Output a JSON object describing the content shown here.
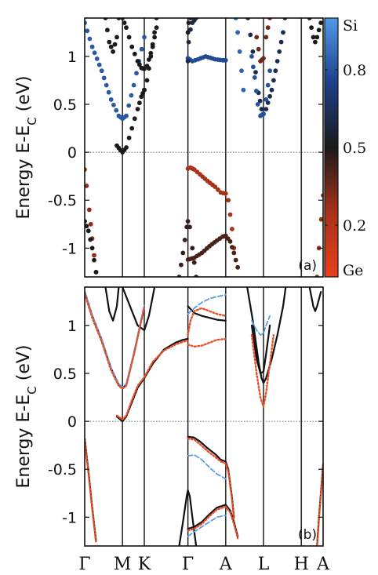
{
  "chart_data": [
    {
      "panel": "a",
      "type": "scatter",
      "tag": "(a)",
      "ylabel": "Energy E-E",
      "ylabel_sub": "C",
      "ylabel_unit": " (eV)",
      "ylim": [
        -1.3,
        1.4
      ],
      "yticks": [
        "1",
        "0.5",
        "0",
        "-0.5",
        "-1"
      ],
      "ytick_values": [
        1,
        0.5,
        0,
        -0.5,
        -1
      ],
      "kpoints": [
        "Γ",
        "M",
        "K",
        "Γ",
        "A",
        "L",
        "H",
        "A"
      ],
      "kpoint_positions": [
        0,
        1,
        1.577,
        2.732,
        3.732,
        4.732,
        5.732,
        6.309
      ],
      "fermi_line": 0,
      "colorbar": {
        "top_label": "Si",
        "bottom_label": "Ge",
        "ticks": [
          "0.8",
          "0.5",
          "0.2"
        ],
        "tick_values": [
          0.8,
          0.5,
          0.2
        ],
        "stops": [
          "#e8401e",
          "#a83218",
          "#1a1a1a",
          "#1d3f8a",
          "#4f9be8"
        ]
      },
      "bands": [
        {
          "x": [
            0.0,
            0.2,
            0.45,
            0.7,
            0.9,
            1.0,
            1.1,
            1.3,
            1.577
          ],
          "y": [
            1.35,
            1.1,
            0.85,
            0.55,
            0.38,
            0.35,
            0.38,
            0.7,
            1.2
          ],
          "si": 0.82
        },
        {
          "x": [
            0.85,
            0.95,
            1.0,
            1.1,
            1.25,
            1.4,
            1.5,
            1.577
          ],
          "y": [
            0.07,
            0.02,
            0.0,
            0.05,
            0.25,
            0.45,
            0.58,
            0.65
          ],
          "si": 0.5
        },
        {
          "x": [
            1.0,
            1.1,
            1.25,
            1.4,
            1.5,
            1.577,
            1.65,
            1.8,
            1.9
          ],
          "y": [
            1.4,
            1.3,
            1.1,
            0.95,
            0.88,
            0.87,
            0.9,
            1.1,
            1.3
          ],
          "si": 0.5
        },
        {
          "x": [
            1.577,
            1.65,
            1.75,
            1.85,
            1.9
          ],
          "y": [
            0.65,
            0.75,
            1.0,
            1.25,
            1.4
          ],
          "si": 0.5
        },
        {
          "x": [
            2.732,
            2.85,
            3.0,
            3.2,
            3.45,
            3.65,
            3.732
          ],
          "y": [
            0.98,
            0.95,
            0.97,
            1.0,
            0.97,
            0.96,
            0.96
          ],
          "si": 0.78
        },
        {
          "x": [
            2.732,
            2.75,
            2.8,
            2.85,
            2.95
          ],
          "y": [
            0.95,
            1.15,
            1.28,
            1.35,
            1.4
          ],
          "si": 0.6
        },
        {
          "x": [
            2.732,
            2.8,
            2.9,
            3.05,
            3.25,
            3.45,
            3.6,
            3.732,
            3.8,
            3.9,
            3.95
          ],
          "y": [
            -0.17,
            -0.16,
            -0.18,
            -0.23,
            -0.3,
            -0.36,
            -0.42,
            -0.43,
            -0.5,
            -0.8,
            -1.0
          ],
          "si": 0.25
        },
        {
          "x": [
            2.732,
            2.9,
            3.1,
            3.3,
            3.5,
            3.65,
            3.732,
            3.85,
            3.95,
            4.05
          ],
          "y": [
            -1.12,
            -1.1,
            -1.05,
            -0.98,
            -0.92,
            -0.88,
            -0.87,
            -0.93,
            -1.05,
            -1.2
          ],
          "si": 0.42
        },
        {
          "x": [
            2.5,
            2.6,
            2.7,
            2.732,
            2.78,
            2.85,
            2.95
          ],
          "y": [
            -1.3,
            -1.05,
            -0.78,
            -0.72,
            -0.78,
            -1.0,
            -1.3
          ],
          "si": 0.45
        },
        {
          "x": [
            0.0,
            0.05,
            0.12,
            0.2,
            0.3
          ],
          "y": [
            -0.18,
            -0.35,
            -0.6,
            -0.9,
            -1.25
          ],
          "si": 0.3
        },
        {
          "x": [
            0.0,
            0.1,
            0.2,
            0.3
          ],
          "y": [
            -0.72,
            -0.82,
            -1.0,
            -1.25
          ],
          "si": 0.5
        },
        {
          "x": [
            4.32,
            4.45,
            4.6,
            4.68,
            4.732,
            4.8,
            4.95,
            5.05,
            5.15,
            5.25,
            5.3
          ],
          "y": [
            1.4,
            1.05,
            0.62,
            0.45,
            0.4,
            0.45,
            0.65,
            0.85,
            1.05,
            1.25,
            1.4
          ],
          "si": 0.62
        },
        {
          "x": [
            4.42,
            4.5,
            4.58,
            4.65,
            4.732,
            4.8,
            4.9
          ],
          "y": [
            1.0,
            0.78,
            0.5,
            0.38,
            0.4,
            0.55,
            0.85
          ],
          "si": 0.8
        },
        {
          "x": [
            4.0,
            4.05,
            4.1,
            4.15,
            4.2
          ],
          "y": [
            1.4,
            1.25,
            1.05,
            0.85,
            0.65
          ],
          "si": 0.85
        },
        {
          "x": [
            4.55,
            4.65,
            4.732,
            4.8,
            4.9
          ],
          "y": [
            1.2,
            0.95,
            0.98,
            1.2,
            1.4
          ],
          "si": 0.35
        },
        {
          "x": [
            5.95,
            6.05,
            6.1,
            6.15,
            6.25
          ],
          "y": [
            1.4,
            1.2,
            1.15,
            1.2,
            1.35
          ],
          "si": 0.5
        },
        {
          "x": [
            6.15,
            6.2,
            6.26,
            6.309
          ],
          "y": [
            -1.3,
            -1.0,
            -0.7,
            -0.45
          ],
          "si": 0.28
        },
        {
          "x": [
            0.55,
            0.65,
            0.75,
            0.85,
            0.9
          ],
          "y": [
            1.4,
            1.15,
            1.05,
            1.2,
            1.4
          ],
          "si": 0.5
        },
        {
          "x": [
            2.732,
            2.75,
            2.8
          ],
          "y": [
            1.25,
            1.35,
            1.4
          ],
          "si": 0.5
        }
      ]
    },
    {
      "panel": "b",
      "type": "line",
      "tag": "(b)",
      "ylabel": "Energy E-E",
      "ylabel_sub": "C",
      "ylabel_unit": " (eV)",
      "ylim": [
        -1.3,
        1.4
      ],
      "yticks": [
        "1",
        "0.5",
        "0",
        "-0.5",
        "-1"
      ],
      "ytick_values": [
        1,
        0.5,
        0,
        -0.5,
        -1
      ],
      "kpoints": [
        "Γ",
        "M",
        "K",
        "Γ",
        "A",
        "L",
        "H",
        "A"
      ],
      "kpoint_positions": [
        0,
        1,
        1.577,
        2.732,
        3.732,
        4.732,
        5.732,
        6.309
      ],
      "fermi_line": 0,
      "series": [
        {
          "style": "solid-black",
          "color": "#111111",
          "bands": [
            {
              "x": [
                0.0,
                0.2,
                0.45,
                0.7,
                0.9,
                1.0,
                1.1,
                1.3,
                1.577
              ],
              "y": [
                1.35,
                1.1,
                0.85,
                0.55,
                0.38,
                0.35,
                0.38,
                0.7,
                1.2
              ]
            },
            {
              "x": [
                0.85,
                1.0,
                1.1,
                1.25,
                1.4,
                1.577,
                1.8,
                2.1,
                2.4,
                2.6,
                2.732
              ],
              "y": [
                0.05,
                0.0,
                0.05,
                0.2,
                0.35,
                0.45,
                0.6,
                0.75,
                0.82,
                0.85,
                0.86
              ]
            },
            {
              "x": [
                1.0,
                1.2,
                1.4,
                1.577,
                1.7,
                1.85
              ],
              "y": [
                1.4,
                1.2,
                1.0,
                0.95,
                1.1,
                1.4
              ]
            },
            {
              "x": [
                2.732,
                2.9,
                3.1,
                3.3,
                3.5,
                3.732
              ],
              "y": [
                1.2,
                1.13,
                1.1,
                1.08,
                1.06,
                1.05
              ]
            },
            {
              "x": [
                2.732,
                2.9,
                3.05,
                3.25,
                3.45,
                3.6,
                3.732,
                3.8,
                3.9,
                3.95
              ],
              "y": [
                -0.16,
                -0.17,
                -0.21,
                -0.28,
                -0.34,
                -0.4,
                -0.42,
                -0.5,
                -0.8,
                -1.0
              ]
            },
            {
              "x": [
                2.732,
                2.9,
                3.1,
                3.3,
                3.5,
                3.732,
                3.85,
                3.95,
                4.05
              ],
              "y": [
                -1.12,
                -1.1,
                -1.05,
                -0.97,
                -0.9,
                -0.87,
                -0.93,
                -1.05,
                -1.2
              ]
            },
            {
              "x": [
                2.5,
                2.6,
                2.7,
                2.732,
                2.78,
                2.85,
                2.95
              ],
              "y": [
                -1.3,
                -1.05,
                -0.78,
                -0.72,
                -0.78,
                -1.0,
                -1.3
              ]
            },
            {
              "x": [
                0.0,
                0.05,
                0.12,
                0.2,
                0.3
              ],
              "y": [
                -0.18,
                -0.35,
                -0.6,
                -0.9,
                -1.25
              ]
            },
            {
              "x": [
                4.3,
                4.45,
                4.6,
                4.68,
                4.732,
                4.8,
                4.95,
                5.1,
                5.25,
                5.32
              ],
              "y": [
                1.4,
                1.05,
                0.62,
                0.45,
                0.4,
                0.45,
                0.65,
                0.9,
                1.2,
                1.4
              ]
            },
            {
              "x": [
                4.42,
                4.55,
                4.65,
                4.732,
                4.8,
                4.9
              ],
              "y": [
                1.0,
                0.65,
                0.5,
                0.52,
                0.7,
                1.0
              ]
            },
            {
              "x": [
                5.95,
                6.05,
                6.1,
                6.15,
                6.25
              ],
              "y": [
                1.4,
                1.2,
                1.15,
                1.2,
                1.35
              ]
            },
            {
              "x": [
                6.15,
                6.2,
                6.26,
                6.309
              ],
              "y": [
                -1.3,
                -1.0,
                -0.7,
                -0.45
              ]
            },
            {
              "x": [
                0.55,
                0.65,
                0.75,
                0.85,
                0.9
              ],
              "y": [
                1.4,
                1.15,
                1.05,
                1.2,
                1.4
              ]
            }
          ]
        },
        {
          "style": "dashed-blue",
          "color": "#5a9fe8",
          "bands": [
            {
              "x": [
                0.0,
                0.2,
                0.45,
                0.7,
                0.9,
                1.0,
                1.1,
                1.3,
                1.577
              ],
              "y": [
                1.35,
                1.1,
                0.86,
                0.56,
                0.39,
                0.36,
                0.39,
                0.71,
                1.21
              ]
            },
            {
              "x": [
                2.732,
                2.9,
                3.1,
                3.3,
                3.5,
                3.732
              ],
              "y": [
                1.12,
                1.18,
                1.24,
                1.28,
                1.3,
                1.32
              ]
            },
            {
              "x": [
                2.732,
                2.9,
                3.1,
                3.3,
                3.5,
                3.732
              ],
              "y": [
                -0.36,
                -0.35,
                -0.4,
                -0.48,
                -0.55,
                -0.6
              ]
            },
            {
              "x": [
                2.732,
                2.9,
                3.1,
                3.3,
                3.5,
                3.732
              ],
              "y": [
                -1.2,
                -1.15,
                -1.1,
                -1.05,
                -1.0,
                -0.98
              ]
            },
            {
              "x": [
                4.42,
                4.55,
                4.65,
                4.732,
                4.8,
                4.9
              ],
              "y": [
                1.05,
                0.95,
                0.9,
                0.92,
                1.0,
                1.1
              ]
            }
          ]
        },
        {
          "style": "dotted-red",
          "color": "#e8502a",
          "bands": [
            {
              "x": [
                0.0,
                0.2,
                0.45,
                0.7,
                0.9,
                1.0,
                1.1,
                1.3,
                1.577
              ],
              "y": [
                1.33,
                1.08,
                0.83,
                0.53,
                0.37,
                0.34,
                0.37,
                0.69,
                1.19
              ]
            },
            {
              "x": [
                0.85,
                1.0,
                1.1,
                1.25,
                1.4,
                1.577,
                1.8,
                2.1,
                2.4,
                2.6,
                2.732
              ],
              "y": [
                0.06,
                0.02,
                0.06,
                0.22,
                0.37,
                0.46,
                0.62,
                0.74,
                0.8,
                0.83,
                0.84
              ]
            },
            {
              "x": [
                2.732,
                2.9,
                3.1,
                3.3,
                3.5,
                3.732
              ],
              "y": [
                0.8,
                0.78,
                0.79,
                0.82,
                0.85,
                0.86
              ]
            },
            {
              "x": [
                2.732,
                2.8,
                2.9,
                3.1,
                3.3,
                3.5,
                3.732
              ],
              "y": [
                0.9,
                1.05,
                1.15,
                1.18,
                1.15,
                1.12,
                1.1
              ]
            },
            {
              "x": [
                2.732,
                2.9,
                3.05,
                3.25,
                3.45,
                3.6,
                3.732,
                3.8,
                3.9,
                3.95
              ],
              "y": [
                -0.18,
                -0.19,
                -0.24,
                -0.31,
                -0.37,
                -0.42,
                -0.44,
                -0.52,
                -0.82,
                -1.02
              ]
            },
            {
              "x": [
                2.732,
                2.9,
                3.1,
                3.3,
                3.5,
                3.732,
                3.85,
                3.95,
                4.05
              ],
              "y": [
                -1.14,
                -1.12,
                -1.07,
                -0.99,
                -0.92,
                -0.89,
                -0.95,
                -1.07,
                -1.22
              ]
            },
            {
              "x": [
                4.42,
                4.55,
                4.65,
                4.732,
                4.8,
                4.9,
                5.0
              ],
              "y": [
                0.9,
                0.5,
                0.25,
                0.15,
                0.3,
                0.6,
                0.9
              ]
            },
            {
              "x": [
                6.15,
                6.2,
                6.26,
                6.309
              ],
              "y": [
                -1.3,
                -1.02,
                -0.72,
                -0.47
              ]
            },
            {
              "x": [
                0.0,
                0.05,
                0.12,
                0.2,
                0.3
              ],
              "y": [
                -0.2,
                -0.37,
                -0.62,
                -0.92,
                -1.27
              ]
            }
          ]
        }
      ]
    }
  ]
}
